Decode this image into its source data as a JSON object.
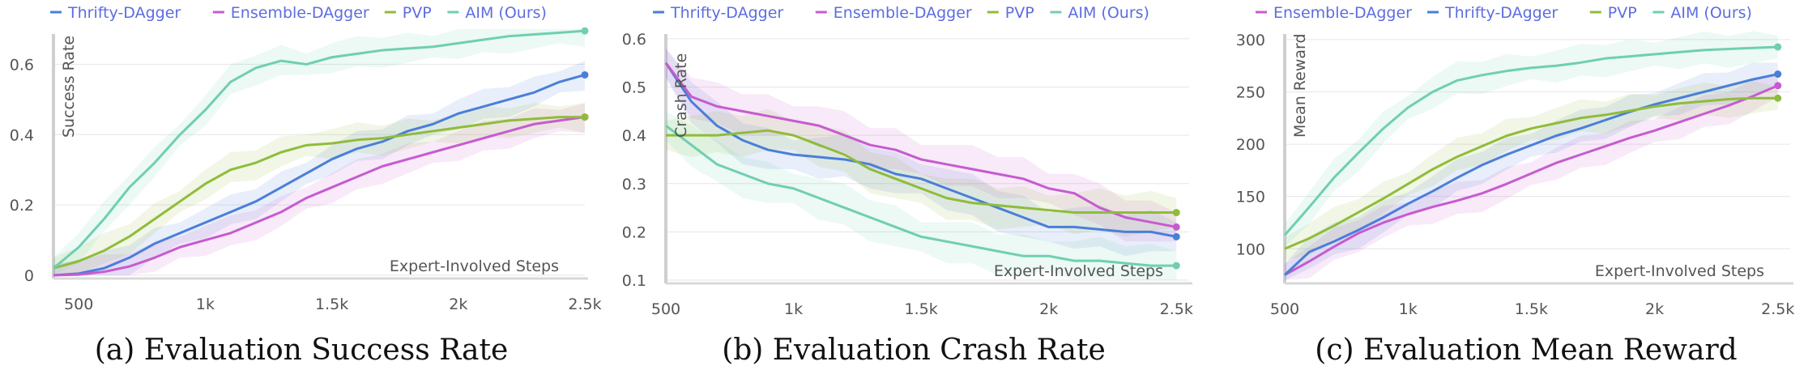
{
  "chart_data": [
    {
      "type": "line",
      "caption": "(a) Evaluation Success Rate",
      "xlabel": "Expert-Involved Steps",
      "ylabel": "Success Rate",
      "xlim": [
        400,
        2500
      ],
      "ylim": [
        0,
        0.7
      ],
      "xticks": [
        500,
        1000,
        1500,
        2000,
        2500
      ],
      "xtick_labels": [
        "500",
        "1k",
        "1.5k",
        "2k",
        "2.5k"
      ],
      "yticks": [
        0,
        0.2,
        0.4,
        0.6
      ],
      "ytick_labels": [
        "0",
        "0.2",
        "0.4",
        "0.6"
      ],
      "grid": true,
      "legend_position": "top-left",
      "series": [
        {
          "name": "Thrifty-DAgger",
          "color": "#4a7fd8",
          "x": [
            400,
            500,
            600,
            700,
            800,
            900,
            1000,
            1100,
            1200,
            1300,
            1400,
            1500,
            1600,
            1700,
            1800,
            1900,
            2000,
            2100,
            2200,
            2300,
            2400,
            2500
          ],
          "y": [
            0.0,
            0.005,
            0.02,
            0.05,
            0.09,
            0.12,
            0.15,
            0.18,
            0.21,
            0.25,
            0.29,
            0.33,
            0.36,
            0.38,
            0.41,
            0.43,
            0.46,
            0.48,
            0.5,
            0.52,
            0.55,
            0.57
          ]
        },
        {
          "name": "Ensemble-DAgger",
          "color": "#c65bd0",
          "x": [
            400,
            500,
            600,
            700,
            800,
            900,
            1000,
            1100,
            1200,
            1300,
            1400,
            1500,
            1600,
            1700,
            1800,
            1900,
            2000,
            2100,
            2200,
            2300,
            2400,
            2500
          ],
          "y": [
            0.0,
            0.002,
            0.01,
            0.025,
            0.05,
            0.08,
            0.1,
            0.12,
            0.15,
            0.18,
            0.22,
            0.25,
            0.28,
            0.31,
            0.33,
            0.35,
            0.37,
            0.39,
            0.41,
            0.43,
            0.44,
            0.45
          ]
        },
        {
          "name": "PVP",
          "color": "#8fbc3a",
          "x": [
            400,
            500,
            600,
            700,
            800,
            900,
            1000,
            1100,
            1200,
            1300,
            1400,
            1500,
            1600,
            1700,
            1800,
            1900,
            2000,
            2100,
            2200,
            2300,
            2400,
            2500
          ],
          "y": [
            0.02,
            0.04,
            0.07,
            0.11,
            0.16,
            0.21,
            0.26,
            0.3,
            0.32,
            0.35,
            0.37,
            0.375,
            0.385,
            0.39,
            0.4,
            0.41,
            0.42,
            0.43,
            0.44,
            0.445,
            0.45,
            0.45
          ]
        },
        {
          "name": "AIM (Ours)",
          "color": "#6fcfb0",
          "x": [
            400,
            500,
            600,
            700,
            800,
            900,
            1000,
            1100,
            1200,
            1300,
            1400,
            1500,
            1600,
            1700,
            1800,
            1900,
            2000,
            2100,
            2200,
            2300,
            2400,
            2500
          ],
          "y": [
            0.02,
            0.08,
            0.16,
            0.25,
            0.32,
            0.4,
            0.47,
            0.55,
            0.59,
            0.61,
            0.6,
            0.62,
            0.63,
            0.64,
            0.645,
            0.65,
            0.66,
            0.67,
            0.68,
            0.685,
            0.69,
            0.695
          ]
        }
      ]
    },
    {
      "type": "line",
      "caption": "(b) Evaluation Crash Rate",
      "xlabel": "Expert-Involved Steps",
      "ylabel": "Crash Rate",
      "xlim": [
        500,
        2550
      ],
      "ylim": [
        0.1,
        0.62
      ],
      "xticks": [
        500,
        1000,
        1500,
        2000,
        2500
      ],
      "xtick_labels": [
        "500",
        "1k",
        "1.5k",
        "2k",
        "2.5k"
      ],
      "yticks": [
        0.1,
        0.2,
        0.3,
        0.4,
        0.5,
        0.6
      ],
      "ytick_labels": [
        "0.1",
        "0.2",
        "0.3",
        "0.4",
        "0.5",
        "0.6"
      ],
      "grid": true,
      "legend_position": "top-left",
      "series": [
        {
          "name": "Thrifty-DAgger",
          "color": "#4a7fd8",
          "x": [
            500,
            600,
            700,
            800,
            900,
            1000,
            1100,
            1200,
            1300,
            1400,
            1500,
            1600,
            1700,
            1800,
            1900,
            2000,
            2100,
            2200,
            2300,
            2400,
            2500
          ],
          "y": [
            0.55,
            0.47,
            0.42,
            0.39,
            0.37,
            0.36,
            0.355,
            0.35,
            0.34,
            0.32,
            0.31,
            0.29,
            0.27,
            0.25,
            0.23,
            0.21,
            0.21,
            0.205,
            0.2,
            0.2,
            0.19
          ]
        },
        {
          "name": "Ensemble-DAgger",
          "color": "#c65bd0",
          "x": [
            500,
            600,
            700,
            800,
            900,
            1000,
            1100,
            1200,
            1300,
            1400,
            1500,
            1600,
            1700,
            1800,
            1900,
            2000,
            2100,
            2200,
            2300,
            2400,
            2500
          ],
          "y": [
            0.55,
            0.48,
            0.46,
            0.45,
            0.44,
            0.43,
            0.42,
            0.4,
            0.38,
            0.37,
            0.35,
            0.34,
            0.33,
            0.32,
            0.31,
            0.29,
            0.28,
            0.25,
            0.23,
            0.22,
            0.21
          ]
        },
        {
          "name": "PVP",
          "color": "#8fbc3a",
          "x": [
            500,
            600,
            700,
            800,
            900,
            1000,
            1100,
            1200,
            1300,
            1400,
            1500,
            1600,
            1700,
            1800,
            1900,
            2000,
            2100,
            2200,
            2300,
            2400,
            2500
          ],
          "y": [
            0.4,
            0.4,
            0.4,
            0.405,
            0.41,
            0.4,
            0.38,
            0.36,
            0.33,
            0.31,
            0.29,
            0.27,
            0.26,
            0.255,
            0.25,
            0.245,
            0.24,
            0.24,
            0.24,
            0.24,
            0.24
          ]
        },
        {
          "name": "AIM (Ours)",
          "color": "#6fcfb0",
          "x": [
            500,
            600,
            700,
            800,
            900,
            1000,
            1100,
            1200,
            1300,
            1400,
            1500,
            1600,
            1700,
            1800,
            1900,
            2000,
            2100,
            2200,
            2300,
            2400,
            2500
          ],
          "y": [
            0.42,
            0.38,
            0.34,
            0.32,
            0.3,
            0.29,
            0.27,
            0.25,
            0.23,
            0.21,
            0.19,
            0.18,
            0.17,
            0.16,
            0.15,
            0.15,
            0.14,
            0.14,
            0.135,
            0.13,
            0.13
          ]
        }
      ]
    },
    {
      "type": "line",
      "caption": "(c) Evaluation Mean Reward",
      "xlabel": "Expert-Involved Steps",
      "ylabel": "Mean Reward",
      "xlim": [
        500,
        2550
      ],
      "ylim": [
        70,
        310
      ],
      "xticks": [
        500,
        1000,
        1500,
        2000,
        2500
      ],
      "xtick_labels": [
        "500",
        "1k",
        "1.5k",
        "2k",
        "2.5k"
      ],
      "yticks": [
        100,
        150,
        200,
        250,
        300
      ],
      "ytick_labels": [
        "100",
        "150",
        "200",
        "250",
        "300"
      ],
      "grid": true,
      "legend_position": "top-left",
      "series": [
        {
          "name": "Ensemble-DAgger",
          "color": "#c65bd0",
          "x": [
            500,
            600,
            700,
            800,
            900,
            1000,
            1100,
            1200,
            1300,
            1400,
            1500,
            1600,
            1700,
            1800,
            1900,
            2000,
            2100,
            2200,
            2300,
            2400,
            2500
          ],
          "y": [
            75,
            88,
            102,
            115,
            125,
            133,
            140,
            146,
            153,
            162,
            172,
            182,
            190,
            198,
            206,
            213,
            221,
            229,
            237,
            246,
            256
          ]
        },
        {
          "name": "Thrifty-DAgger",
          "color": "#4a7fd8",
          "x": [
            500,
            600,
            700,
            800,
            900,
            1000,
            1100,
            1200,
            1300,
            1400,
            1500,
            1600,
            1700,
            1800,
            1900,
            2000,
            2100,
            2200,
            2300,
            2400,
            2500
          ],
          "y": [
            75,
            97,
            107,
            118,
            130,
            143,
            155,
            168,
            180,
            190,
            199,
            208,
            215,
            223,
            231,
            238,
            244,
            250,
            256,
            262,
            267
          ]
        },
        {
          "name": "PVP",
          "color": "#8fbc3a",
          "x": [
            500,
            600,
            700,
            800,
            900,
            1000,
            1100,
            1200,
            1300,
            1400,
            1500,
            1600,
            1700,
            1800,
            1900,
            2000,
            2100,
            2200,
            2300,
            2400,
            2500
          ],
          "y": [
            100,
            110,
            122,
            135,
            148,
            162,
            176,
            188,
            198,
            208,
            215,
            220,
            225,
            228,
            232,
            236,
            239,
            241,
            243,
            244,
            244
          ]
        },
        {
          "name": "AIM (Ours)",
          "color": "#6fcfb0",
          "x": [
            500,
            600,
            700,
            800,
            900,
            1000,
            1100,
            1200,
            1300,
            1400,
            1500,
            1600,
            1700,
            1800,
            1900,
            2000,
            2100,
            2200,
            2300,
            2400,
            2500
          ],
          "y": [
            113,
            140,
            168,
            192,
            215,
            235,
            250,
            261,
            266,
            270,
            273,
            275,
            278,
            282,
            284,
            286,
            288,
            290,
            291,
            292,
            293
          ]
        }
      ]
    }
  ]
}
